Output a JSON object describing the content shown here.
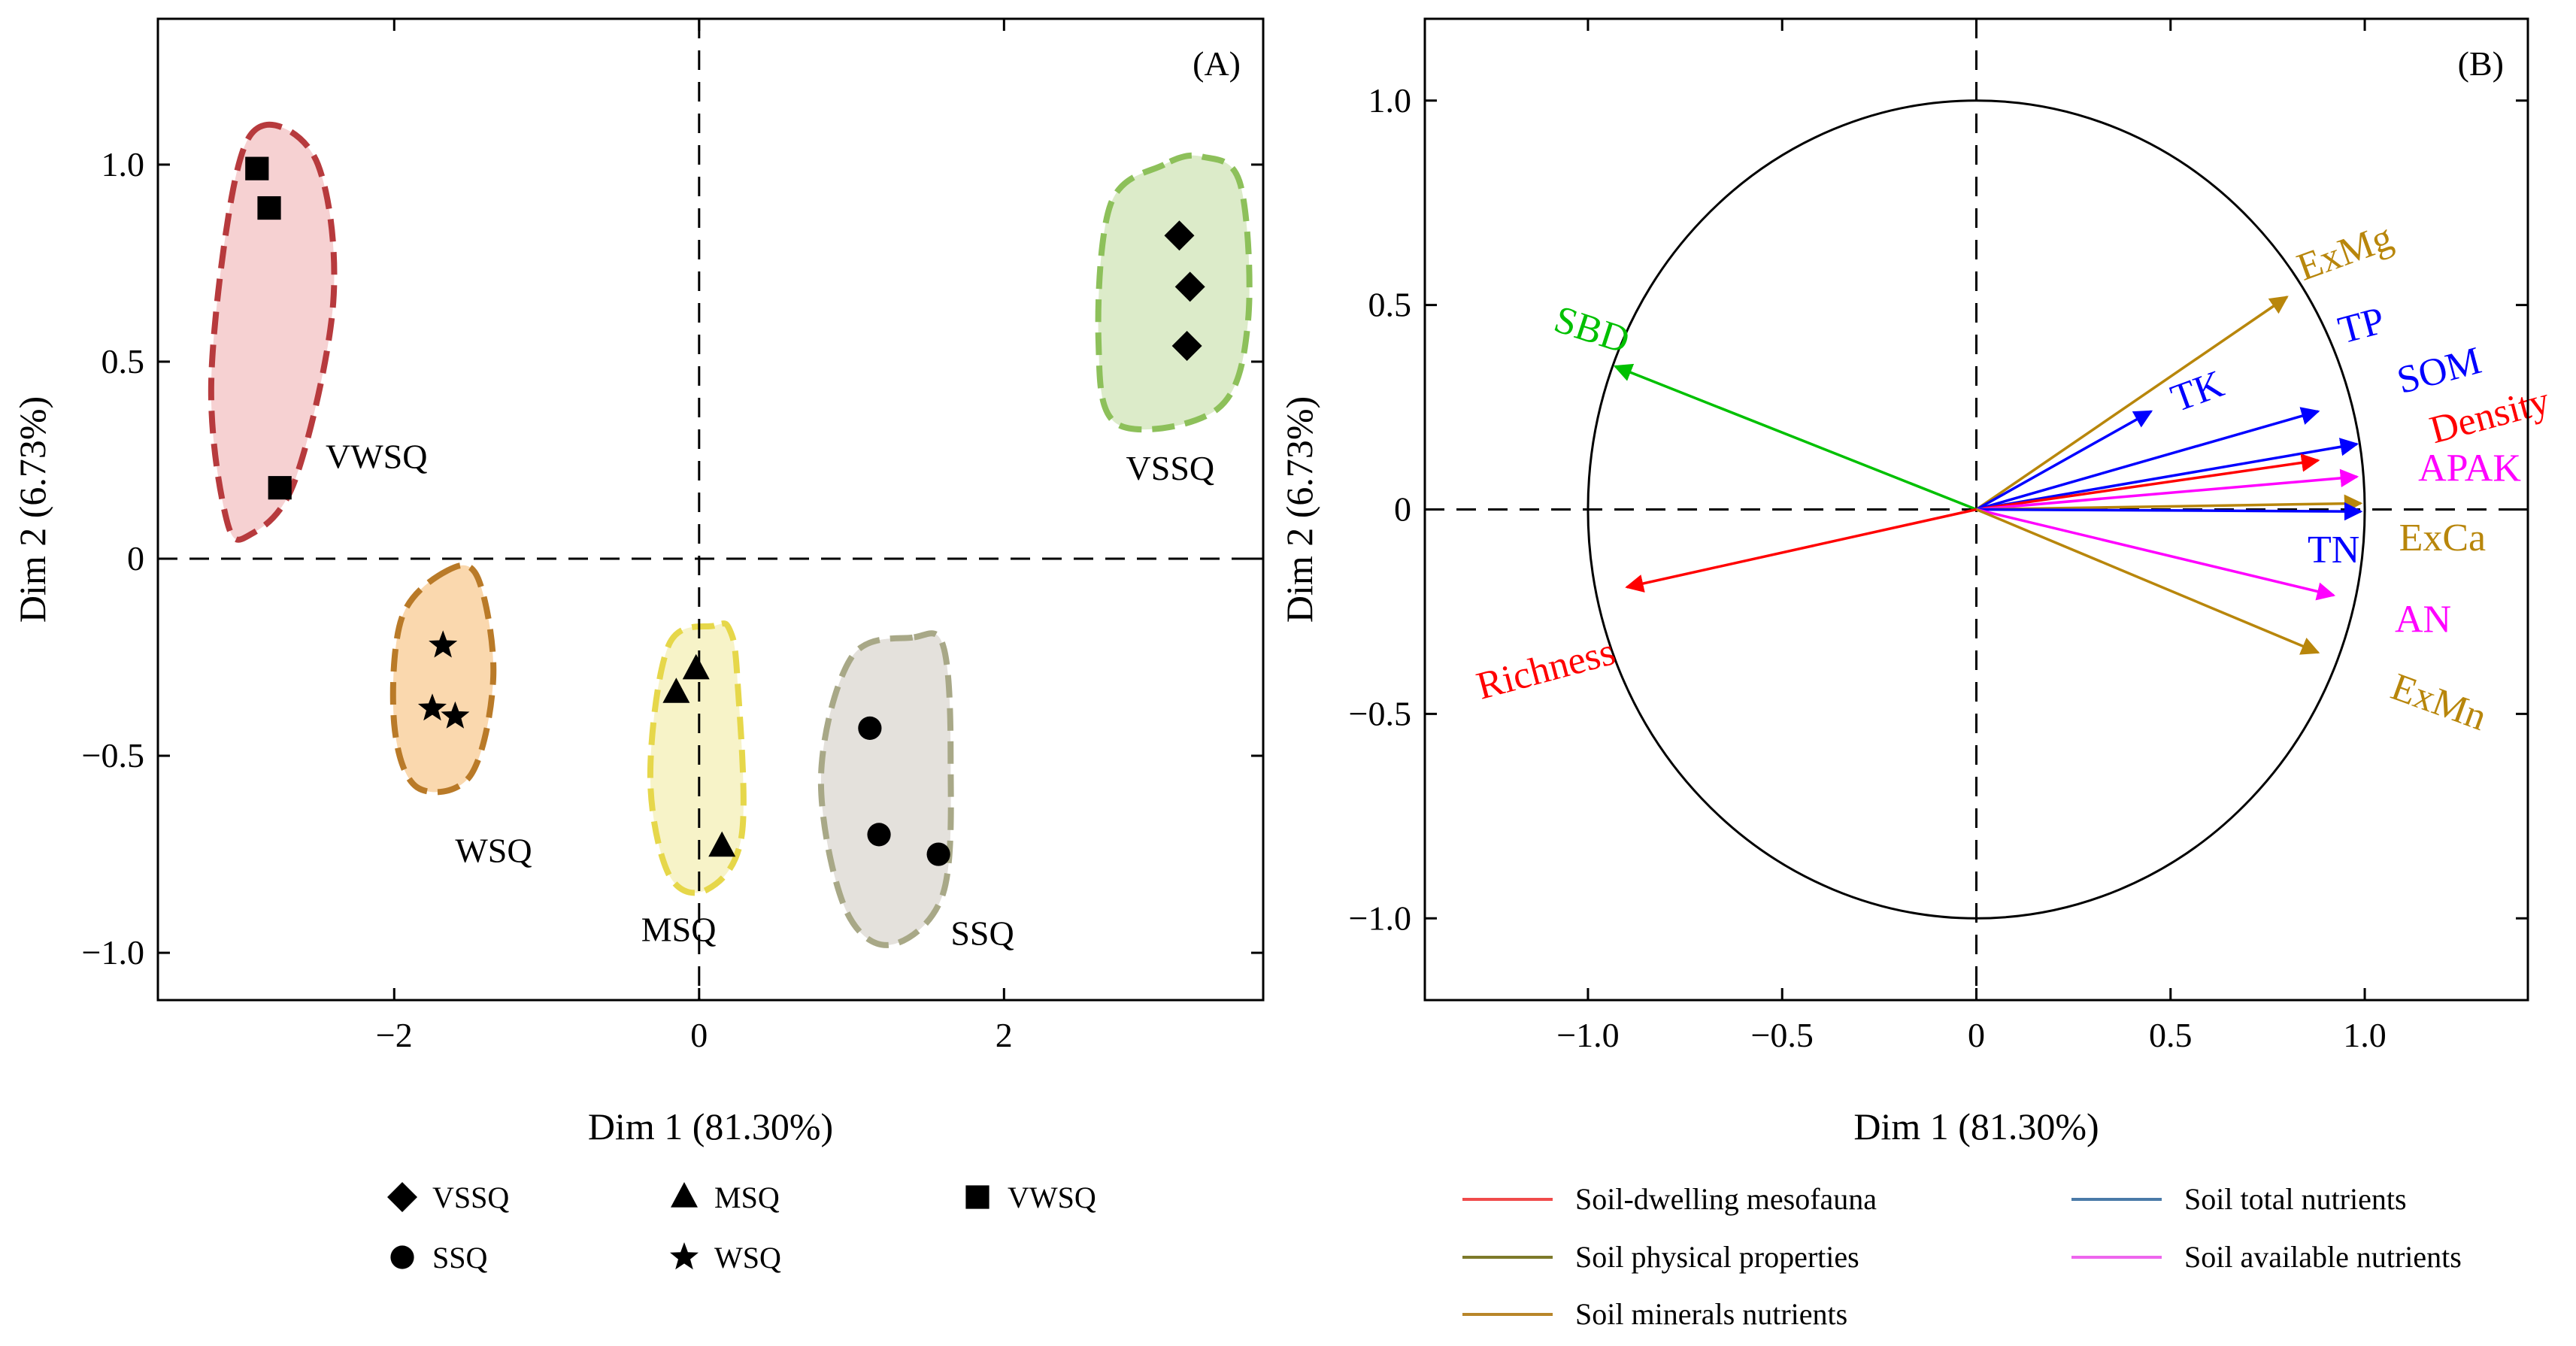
{
  "chart_data": [
    {
      "type": "scatter",
      "panel": "(A)",
      "xlabel": "Dim 1 (81.30%)",
      "ylabel": "Dim 2 (6.73%)",
      "xlim": [
        -3.55,
        3.7
      ],
      "ylim": [
        -1.12,
        1.37
      ],
      "xticks": [
        -2,
        0,
        2
      ],
      "xtick_labels": [
        "−2",
        "0",
        "2"
      ],
      "yticks": [
        -1.0,
        -0.5,
        0,
        0.5,
        1.0
      ],
      "ytick_labels": [
        "−1.0",
        "−0.5",
        "0",
        "0.5",
        "1.0"
      ],
      "legend_position": "bottom",
      "groups": [
        {
          "name": "VSSQ",
          "marker": "diamond",
          "hull_color": "#8dc05a",
          "fill_color": "#dcebc9",
          "points": [
            [
              3.15,
              0.82
            ],
            [
              3.22,
              0.69
            ],
            [
              3.2,
              0.54
            ]
          ],
          "hull": [
            [
              3.05,
              1.0
            ],
            [
              2.7,
              0.9
            ],
            [
              2.62,
              0.55
            ],
            [
              2.75,
              0.34
            ],
            [
              3.4,
              0.38
            ],
            [
              3.6,
              0.6
            ],
            [
              3.55,
              0.95
            ],
            [
              3.3,
              1.02
            ]
          ],
          "label": "VSSQ",
          "label_pos": [
            2.8,
            0.2
          ]
        },
        {
          "name": "SSQ",
          "marker": "circle",
          "hull_color": "#a8a887",
          "fill_color": "#e4e1dc",
          "points": [
            [
              1.12,
              -0.43
            ],
            [
              1.18,
              -0.7
            ],
            [
              1.57,
              -0.75
            ]
          ],
          "hull": [
            [
              1.4,
              -0.2
            ],
            [
              1.0,
              -0.25
            ],
            [
              0.8,
              -0.55
            ],
            [
              0.95,
              -0.88
            ],
            [
              1.25,
              -0.98
            ],
            [
              1.6,
              -0.85
            ],
            [
              1.65,
              -0.5
            ],
            [
              1.6,
              -0.22
            ]
          ],
          "label": "SSQ",
          "label_pos": [
            1.65,
            -0.98
          ]
        },
        {
          "name": "MSQ",
          "marker": "triangle",
          "hull_color": "#e6d74a",
          "fill_color": "#f7f3c8",
          "points": [
            [
              -0.15,
              -0.34
            ],
            [
              -0.02,
              -0.28
            ],
            [
              0.15,
              -0.73
            ]
          ],
          "hull": [
            [
              0.1,
              -0.17
            ],
            [
              -0.2,
              -0.22
            ],
            [
              -0.32,
              -0.55
            ],
            [
              -0.2,
              -0.8
            ],
            [
              0.05,
              -0.84
            ],
            [
              0.28,
              -0.7
            ],
            [
              0.25,
              -0.3
            ],
            [
              0.2,
              -0.18
            ]
          ],
          "label": "MSQ",
          "label_pos": [
            -0.38,
            -0.97
          ]
        },
        {
          "name": "WSQ",
          "marker": "star",
          "hull_color": "#b97a28",
          "fill_color": "#fad8ae",
          "points": [
            [
              -1.68,
              -0.22
            ],
            [
              -1.75,
              -0.38
            ],
            [
              -1.6,
              -0.4
            ]
          ],
          "hull": [
            [
              -1.65,
              -0.03
            ],
            [
              -1.95,
              -0.15
            ],
            [
              -2.0,
              -0.42
            ],
            [
              -1.85,
              -0.58
            ],
            [
              -1.5,
              -0.55
            ],
            [
              -1.35,
              -0.3
            ],
            [
              -1.45,
              -0.05
            ]
          ],
          "label": "WSQ",
          "label_pos": [
            -1.6,
            -0.77
          ]
        },
        {
          "name": "VWSQ",
          "marker": "square",
          "hull_color": "#b73a3d",
          "fill_color": "#f6d1d2",
          "points": [
            [
              -2.9,
              0.99
            ],
            [
              -2.82,
              0.89
            ],
            [
              -2.75,
              0.18
            ]
          ],
          "hull": [
            [
              -2.85,
              1.1
            ],
            [
              -3.05,
              0.95
            ],
            [
              -3.2,
              0.45
            ],
            [
              -3.1,
              0.1
            ],
            [
              -2.95,
              0.06
            ],
            [
              -2.65,
              0.2
            ],
            [
              -2.4,
              0.65
            ],
            [
              -2.5,
              1.0
            ]
          ],
          "label": "VWSQ",
          "label_pos": [
            -2.45,
            0.23
          ]
        }
      ]
    },
    {
      "type": "biplot",
      "panel": "(B)",
      "xlabel": "Dim 1 (81.30%)",
      "ylabel": "Dim 2 (6.73%)",
      "xlim": [
        -1.42,
        1.42
      ],
      "ylim": [
        -1.2,
        1.2
      ],
      "xticks": [
        -1.0,
        -0.5,
        0,
        0.5,
        1.0
      ],
      "xtick_labels": [
        "−1.0",
        "−0.5",
        "0",
        "0.5",
        "1.0"
      ],
      "yticks": [
        -1.0,
        -0.5,
        0,
        0.5,
        1.0
      ],
      "ytick_labels": [
        "−1.0",
        "−0.5",
        "0",
        "0.5",
        "1.0"
      ],
      "circle_radius": 1.0,
      "legend_position": "bottom",
      "vectors": [
        {
          "name": "ExMg",
          "x": 0.8,
          "y": 0.52,
          "color": "#b8860b",
          "label_x": 0.96,
          "label_y": 0.6,
          "rotate": -20
        },
        {
          "name": "TP",
          "x": 0.88,
          "y": 0.24,
          "color": "#0000ff",
          "label_x": 1.0,
          "label_y": 0.42,
          "rotate": -15
        },
        {
          "name": "SOM",
          "x": 0.98,
          "y": 0.16,
          "color": "#0000ff",
          "label_x": 1.2,
          "label_y": 0.31,
          "rotate": -15
        },
        {
          "name": "Density",
          "x": 0.88,
          "y": 0.12,
          "color": "#ff0000",
          "label_x": 1.33,
          "label_y": 0.2,
          "rotate": -15
        },
        {
          "name": "TK",
          "x": 0.45,
          "y": 0.24,
          "color": "#0000ff",
          "label_x": 0.58,
          "label_y": 0.26,
          "rotate": -20
        },
        {
          "name": "APAK",
          "x": 0.98,
          "y": 0.08,
          "color": "#ff00ff",
          "label_x": 1.27,
          "label_y": 0.07,
          "rotate": 0
        },
        {
          "name": "ExCa",
          "x": 0.99,
          "y": 0.015,
          "color": "#b8860b",
          "label_x": 1.2,
          "label_y": -0.1,
          "rotate": 0
        },
        {
          "name": "TN",
          "x": 0.99,
          "y": -0.005,
          "color": "#0000ff",
          "label_x": 0.92,
          "label_y": -0.13,
          "rotate": 0
        },
        {
          "name": "AN",
          "x": 0.92,
          "y": -0.21,
          "color": "#ff00ff",
          "label_x": 1.15,
          "label_y": -0.3,
          "rotate": 0
        },
        {
          "name": "ExMn",
          "x": 0.88,
          "y": -0.35,
          "color": "#b8860b",
          "label_x": 1.18,
          "label_y": -0.5,
          "rotate": 20
        },
        {
          "name": "SBD",
          "x": -0.93,
          "y": 0.35,
          "color": "#00c000",
          "label_x": -1.0,
          "label_y": 0.41,
          "rotate": 18
        },
        {
          "name": "Richness",
          "x": -0.9,
          "y": -0.19,
          "color": "#ff0000",
          "label_x": -1.1,
          "label_y": -0.42,
          "rotate": -15
        }
      ]
    }
  ],
  "legend_a": [
    {
      "name": "VSSQ",
      "marker": "diamond"
    },
    {
      "name": "MSQ",
      "marker": "triangle"
    },
    {
      "name": "VWSQ",
      "marker": "square"
    },
    {
      "name": "SSQ",
      "marker": "circle"
    },
    {
      "name": "WSQ",
      "marker": "star"
    }
  ],
  "legend_b": [
    {
      "name": "Soil-dwelling mesofauna",
      "color": "#f04b4b"
    },
    {
      "name": "Soil total nutrients",
      "color": "#4a7aa8"
    },
    {
      "name": "Soil physical properties",
      "color": "#7d7a2a"
    },
    {
      "name": "Soil available nutrients",
      "color": "#ee66ee"
    },
    {
      "name": "Soil minerals nutrients",
      "color": "#b8862a"
    }
  ]
}
